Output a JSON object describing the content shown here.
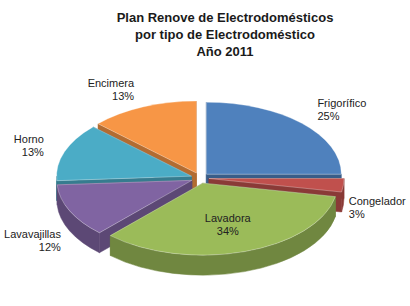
{
  "chart_data": {
    "type": "pie",
    "title": "Plan Renove de Electrodomésticos\npor tipo de Electrodoméstico\nAño 2011",
    "categories": [
      "Frigorífico",
      "Congelador",
      "Lavadora",
      "Lavavajillas",
      "Horno",
      "Encimera"
    ],
    "values": [
      25,
      3,
      34,
      12,
      13,
      13
    ],
    "value_labels": [
      "25%",
      "3%",
      "34%",
      "12%",
      "13%",
      "13%"
    ],
    "colors": [
      "#4f81bd",
      "#c0504d",
      "#9bbb59",
      "#8064a2",
      "#4bacc6",
      "#f79646"
    ],
    "data_labels": true
  }
}
